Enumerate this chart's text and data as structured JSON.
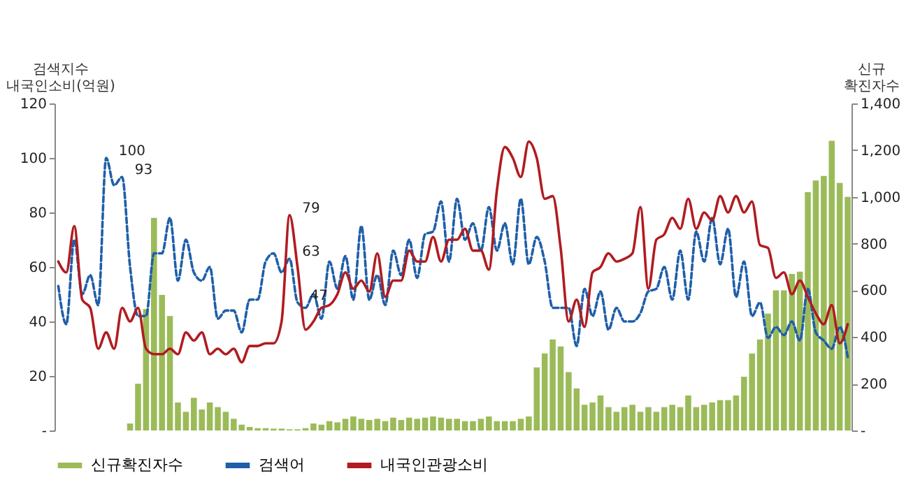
{
  "chart_data": {
    "type": "line",
    "categories": [
      null,
      null,
      null,
      null,
      null,
      null,
      null,
      null,
      null,
      null,
      null,
      null,
      null,
      null,
      null,
      null,
      null,
      null,
      null,
      null,
      null,
      null,
      null,
      null,
      null,
      null,
      null,
      null,
      null,
      null,
      null,
      null,
      null,
      null,
      null,
      null,
      null,
      null,
      null,
      null,
      null,
      null,
      null,
      null,
      null,
      null,
      null,
      null,
      null,
      null,
      null,
      null,
      null,
      null,
      null,
      null,
      null,
      null,
      null,
      null,
      null,
      null,
      null,
      null,
      null,
      null,
      null,
      null,
      null,
      null,
      null,
      null,
      null,
      null,
      null,
      null,
      null,
      null,
      null,
      null,
      null,
      null,
      null,
      null,
      null,
      null,
      null,
      null,
      null,
      null,
      null,
      null,
      null,
      null,
      null,
      null,
      null,
      null,
      null,
      null
    ],
    "ylabel": "검색지수\n내국인소비(억원)",
    "y2label": "신규\n확진자수",
    "ylim": [
      0,
      120
    ],
    "yticks": [
      {
        "value": 0,
        "label": "-"
      },
      20,
      40,
      60,
      80,
      100,
      120
    ],
    "y2lim": [
      0,
      1400
    ],
    "y2ticks": [
      {
        "value": 0,
        "label": "-"
      },
      200,
      400,
      600,
      800,
      {
        "value": 1000,
        "label": "1,000"
      },
      {
        "value": 1200,
        "label": "1,200"
      },
      {
        "value": 1400,
        "label": "1,400"
      }
    ],
    "legend": "bottom",
    "grid": false,
    "series": [
      {
        "name": "신규확진자수",
        "type": "bar",
        "axis": "y2",
        "color": "#9bbb59",
        "values": [
          0,
          0,
          0,
          0,
          0,
          0,
          0,
          0,
          0,
          30,
          200,
          520,
          910,
          580,
          490,
          120,
          80,
          140,
          90,
          120,
          100,
          80,
          50,
          25,
          15,
          10,
          10,
          8,
          8,
          5,
          5,
          10,
          30,
          25,
          40,
          35,
          50,
          60,
          50,
          45,
          50,
          40,
          55,
          45,
          55,
          50,
          55,
          60,
          55,
          50,
          50,
          40,
          40,
          50,
          60,
          40,
          40,
          40,
          50,
          60,
          270,
          330,
          390,
          360,
          250,
          180,
          110,
          120,
          150,
          100,
          80,
          100,
          110,
          80,
          100,
          80,
          100,
          110,
          100,
          150,
          100,
          110,
          120,
          130,
          130,
          150,
          230,
          330,
          390,
          500,
          600,
          600,
          670,
          680,
          1020,
          1070,
          1090,
          1240,
          1060,
          1000
        ]
      },
      {
        "name": "검색어",
        "line_style": "dashed",
        "color": "#1f5fa8",
        "values": [
          53,
          39,
          70,
          50,
          57,
          46,
          100,
          90,
          93,
          60,
          42,
          42,
          65,
          65,
          78,
          55,
          70,
          58,
          55,
          60,
          41,
          44,
          44,
          36,
          48,
          48,
          62,
          65,
          58,
          63,
          47,
          45,
          50,
          41,
          62,
          52,
          64,
          48,
          75,
          48,
          57,
          46,
          66,
          57,
          70,
          56,
          72,
          73,
          84,
          62,
          85,
          70,
          76,
          66,
          82,
          66,
          76,
          61,
          85,
          61,
          71,
          62,
          45,
          45,
          45,
          31,
          52,
          42,
          51,
          37,
          45,
          40,
          40,
          43,
          51,
          52,
          60,
          48,
          66,
          48,
          73,
          62,
          78,
          61,
          74,
          49,
          62,
          42,
          47,
          34,
          38,
          35,
          40,
          33,
          52,
          36,
          33,
          30,
          38,
          27
        ],
        "value_labels": [
          null,
          null,
          null,
          null,
          null,
          null,
          "100",
          null,
          "93",
          null,
          null,
          null,
          null,
          null,
          null,
          null,
          null,
          null,
          null,
          null,
          null,
          null,
          null,
          null,
          null,
          null,
          null,
          null,
          null,
          "63",
          "47",
          null,
          null,
          null,
          null,
          null,
          null,
          null,
          null,
          null,
          null,
          null,
          null,
          null,
          null,
          null,
          null,
          null,
          null,
          null,
          null,
          null,
          null,
          null,
          null,
          null,
          null,
          null,
          null,
          null,
          null,
          null,
          null,
          null,
          null,
          null,
          null,
          null,
          null,
          null,
          null,
          null,
          null,
          null,
          null,
          null,
          null,
          null,
          null,
          null,
          null,
          null,
          null,
          null,
          null,
          null,
          null,
          null,
          null,
          null,
          null,
          null,
          null,
          null,
          null,
          null,
          null,
          null,
          null,
          null
        ]
      },
      {
        "name": "내국인관광소비",
        "line_style": "solid",
        "color": "#b01c20",
        "values": [
          62,
          58,
          75,
          48,
          45,
          30,
          36,
          30,
          45,
          40,
          45,
          30,
          28,
          28,
          30,
          28,
          36,
          33,
          36,
          28,
          30,
          28,
          30,
          25,
          31,
          31,
          32,
          32,
          40,
          79,
          60,
          37,
          40,
          45,
          46,
          50,
          58,
          52,
          55,
          51,
          65,
          49,
          55,
          55,
          66,
          62,
          62,
          71,
          62,
          70,
          70,
          74,
          66,
          66,
          59,
          88,
          104,
          100,
          93,
          106,
          100,
          85,
          86,
          67,
          40,
          48,
          38,
          58,
          60,
          65,
          62,
          63,
          65,
          82,
          52,
          70,
          72,
          78,
          74,
          85,
          74,
          80,
          77,
          86,
          80,
          86,
          80,
          84,
          68,
          67,
          56,
          58,
          50,
          55,
          49,
          43,
          39,
          46,
          32,
          39
        ],
        "value_labels": [
          null,
          null,
          null,
          null,
          null,
          null,
          null,
          null,
          null,
          null,
          null,
          null,
          null,
          null,
          null,
          null,
          null,
          null,
          null,
          null,
          null,
          null,
          null,
          null,
          null,
          null,
          null,
          null,
          null,
          "79",
          null,
          null,
          null,
          null,
          null,
          null,
          null,
          null,
          null,
          null,
          null,
          null,
          null,
          null,
          null,
          null,
          null,
          null,
          null,
          null,
          null,
          null,
          null,
          null,
          null,
          null,
          null,
          null,
          null,
          null,
          null,
          null,
          null,
          null,
          null,
          null,
          null,
          null,
          null,
          null,
          null,
          null,
          null,
          null,
          null,
          null,
          null,
          null,
          null,
          null,
          null,
          null,
          null,
          null,
          null,
          null,
          null,
          null,
          null,
          null,
          null,
          null,
          null,
          null,
          null,
          null,
          null,
          null,
          null,
          null
        ]
      }
    ]
  }
}
